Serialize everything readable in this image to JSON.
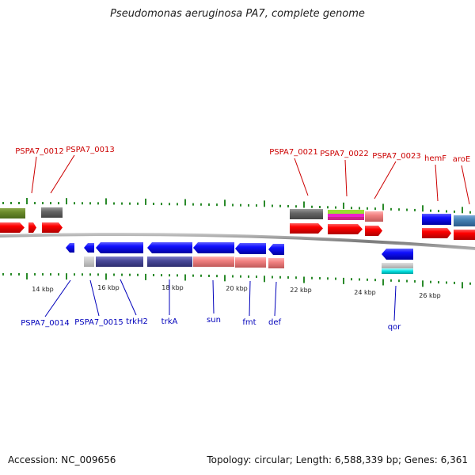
{
  "title": "Pseudomonas aeruginosa PA7, complete genome",
  "footer": {
    "accession": "Accession: NC_009656",
    "stats": "Topology: circular; Length: 6,588,339 bp; Genes: 6,361"
  },
  "colors": {
    "top_label": "#cc0000",
    "bottom_label": "#0000bb",
    "tick": "#2a8a2a",
    "backbone": "#888888",
    "red_feature": "#ff0000",
    "blue_feature": "#1010ff",
    "slate_feature": "#4a4a9a",
    "pink_feature": "#f08080",
    "grey_feature": "#777777"
  },
  "axis_labels": [
    "14 kbp",
    "16 kbp",
    "18 kbp",
    "20 kbp",
    "22 kbp",
    "24 kbp",
    "26 kbp"
  ],
  "top_labels": [
    "PSPA7_0012",
    "PSPA7_0013",
    "PSPA7_0021",
    "PSPA7_0022",
    "PSPA7_0023",
    "hemF",
    "aroE"
  ],
  "bottom_labels": [
    "PSPA7_0014",
    "PSPA7_0015",
    "trkH2",
    "trkA",
    "sun",
    "fmt",
    "def",
    "qor"
  ]
}
